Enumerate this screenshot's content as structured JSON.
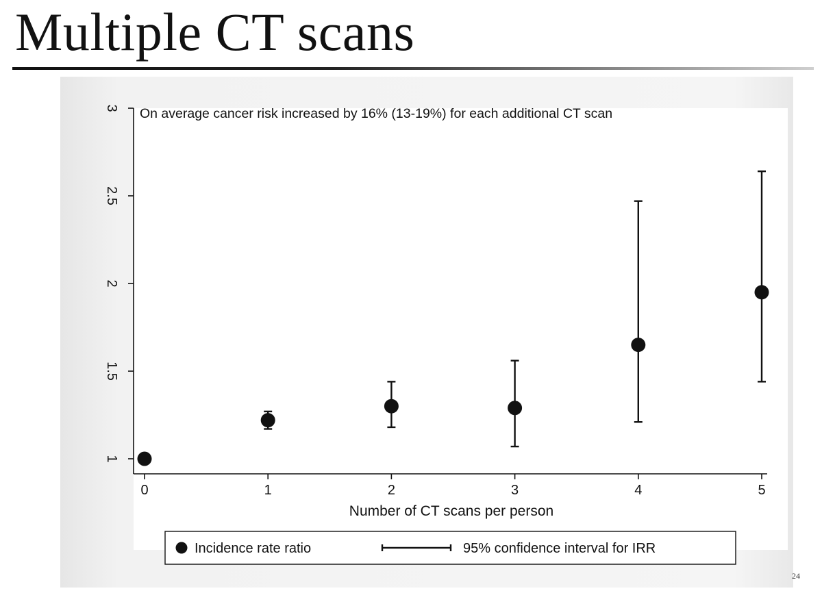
{
  "slide": {
    "title": "Multiple CT scans",
    "page_number": "24"
  },
  "chart_data": {
    "type": "scatter",
    "annotation": "On average cancer risk increased by 16% (13-19%) for each additional CT scan",
    "xlabel": "Number of CT scans per person",
    "ylabel": "",
    "x_ticks": [
      "0",
      "1",
      "2",
      "3",
      "4",
      "5"
    ],
    "y_ticks": [
      "1",
      "1.5",
      "2",
      "2.5",
      "3"
    ],
    "xlim": [
      0,
      5
    ],
    "ylim": [
      1,
      3
    ],
    "grid": false,
    "legend_position": "bottom",
    "legend": {
      "point_label": "Incidence rate ratio",
      "interval_label": "95% confidence interval for IRR"
    },
    "series": [
      {
        "name": "Incidence rate ratio",
        "x": [
          0,
          1,
          2,
          3,
          4,
          5
        ],
        "y": [
          1.0,
          1.22,
          1.3,
          1.29,
          1.65,
          1.95
        ],
        "ci_low": [
          null,
          1.17,
          1.18,
          1.07,
          1.21,
          1.44
        ],
        "ci_high": [
          null,
          1.27,
          1.44,
          1.56,
          2.47,
          2.64
        ]
      }
    ],
    "colors": {
      "marker": "#111111",
      "axis": "#111111",
      "plot_background": "#ffffff"
    }
  }
}
